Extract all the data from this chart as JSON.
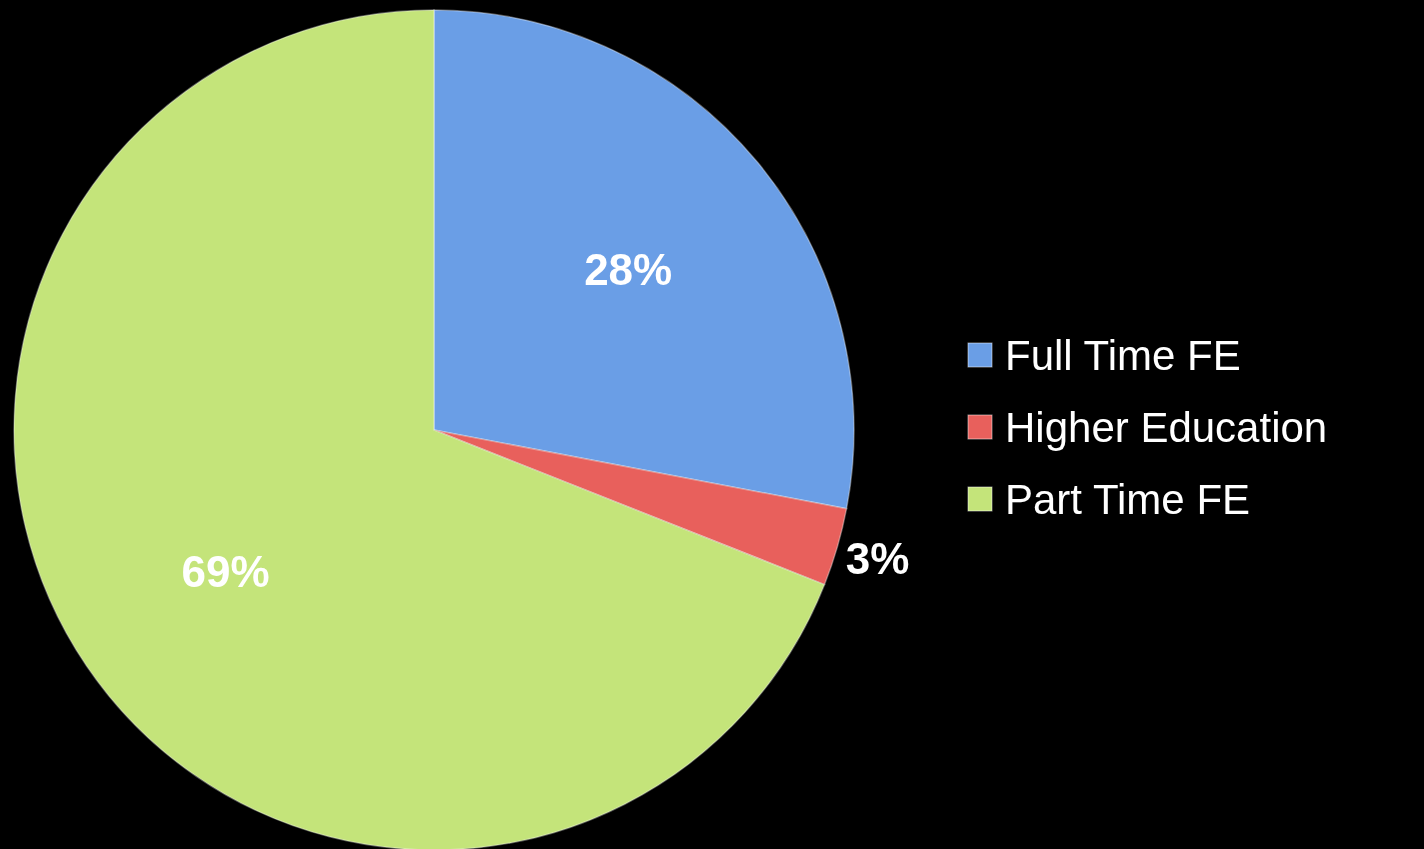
{
  "chart_data": {
    "type": "pie",
    "categories": [
      "Full Time FE",
      "Higher Education",
      "Part Time FE"
    ],
    "values": [
      28,
      3,
      69
    ],
    "colors": [
      "#6a9ee6",
      "#e8605c",
      "#c4e47a"
    ],
    "value_labels": [
      "28%",
      "3%",
      "69%"
    ],
    "legend": "right"
  }
}
